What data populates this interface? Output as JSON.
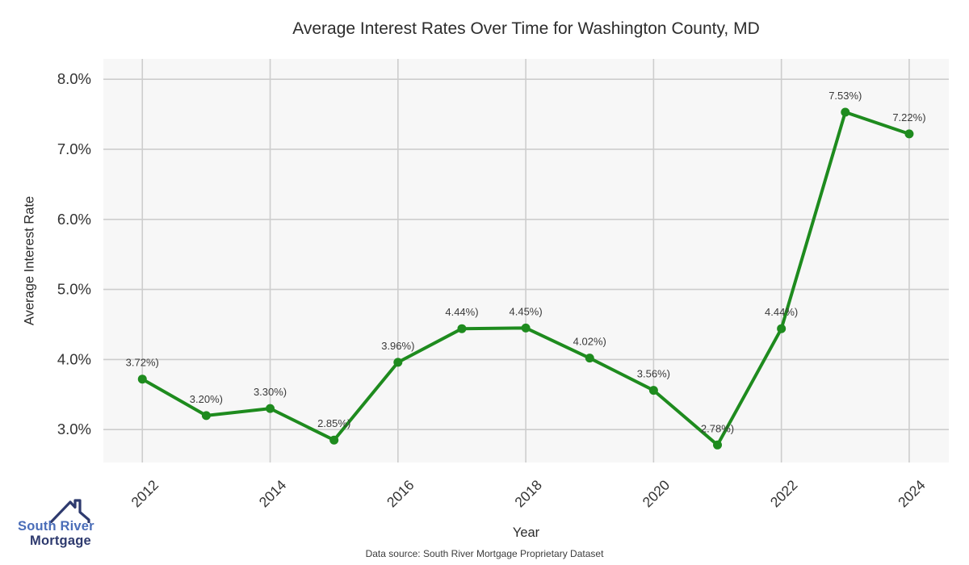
{
  "chart": {
    "title": "Average Interest Rates Over Time for Washington County, MD",
    "xlabel": "Year",
    "ylabel": "Average Interest Rate"
  },
  "chart_data": {
    "type": "line",
    "title": "Average Interest Rates Over Time for Washington County, MD",
    "xlabel": "Year",
    "ylabel": "Average Interest Rate",
    "x": [
      2012,
      2013,
      2014,
      2015,
      2016,
      2017,
      2018,
      2019,
      2020,
      2021,
      2022,
      2023,
      2024
    ],
    "values": [
      3.72,
      3.2,
      3.3,
      2.85,
      3.96,
      4.44,
      4.45,
      4.02,
      3.56,
      2.78,
      4.44,
      7.53,
      7.22
    ],
    "point_labels": [
      "3.72%)",
      "3.20%)",
      "3.30%)",
      "2.85%)",
      "3.96%)",
      "4.44%)",
      "4.45%)",
      "4.02%)",
      "3.56%)",
      "2.78%)",
      "4.44%)",
      "7.53%)",
      "7.22%)"
    ],
    "y_ticks": [
      {
        "value": 3,
        "label": "3.0%"
      },
      {
        "value": 4,
        "label": "4.0%"
      },
      {
        "value": 5,
        "label": "5.0%"
      },
      {
        "value": 6,
        "label": "6.0%"
      },
      {
        "value": 7,
        "label": "7.0%"
      },
      {
        "value": 8,
        "label": "8.0%"
      }
    ],
    "x_ticks": [
      {
        "value": 2012,
        "label": "2012"
      },
      {
        "value": 2014,
        "label": "2014"
      },
      {
        "value": 2016,
        "label": "2016"
      },
      {
        "value": 2018,
        "label": "2018"
      },
      {
        "value": 2020,
        "label": "2020"
      },
      {
        "value": 2022,
        "label": "2022"
      },
      {
        "value": 2024,
        "label": "2024"
      }
    ],
    "xlim": [
      2011.39,
      2024.62
    ],
    "ylim": [
      2.53,
      8.29
    ],
    "grid": true,
    "legend_position": "none",
    "colors": {
      "line": "#1e8b1e",
      "marker": "#1e8b1e",
      "plot_bg": "#f7f7f7",
      "grid": "#cdcdcd",
      "tick_text": "#333333",
      "point_label_text": "#3a3a3a"
    }
  },
  "footer": {
    "source": "Data source: South River Mortgage Proprietary Dataset"
  },
  "logo": {
    "line1": "South River",
    "line2": "Mortgage",
    "icon": "house-roof-icon",
    "colors": {
      "line1": "#4a6db8",
      "line2": "#2e3a6e",
      "roof": "#2e3a6e"
    }
  }
}
